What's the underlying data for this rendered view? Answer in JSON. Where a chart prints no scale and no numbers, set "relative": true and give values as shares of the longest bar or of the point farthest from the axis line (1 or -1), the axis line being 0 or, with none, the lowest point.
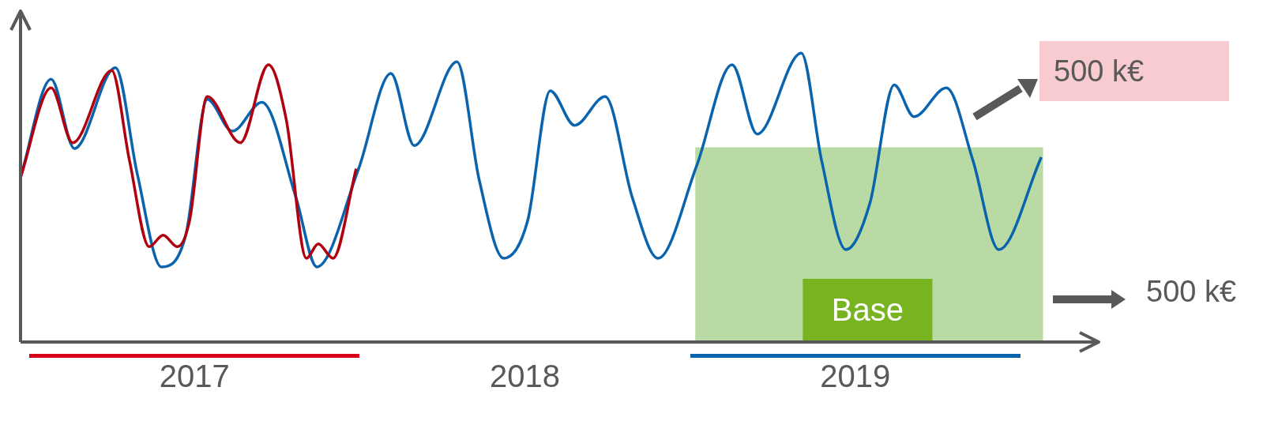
{
  "chart_data": {
    "type": "line",
    "relative": true,
    "tick_labels": "x",
    "xlim": [
      2017,
      2020.1
    ],
    "xticks": [
      {
        "value": 2017.5,
        "label": "2017"
      },
      {
        "value": 2018.45,
        "label": "2018"
      },
      {
        "value": 2019.4,
        "label": "2019"
      }
    ],
    "series": [
      {
        "color": "#b00010",
        "x": [
          2017,
          2017.088,
          2017.15,
          2017.262,
          2017.313,
          2017.37,
          2017.41,
          2017.451,
          2017.486,
          2017.537,
          2017.632,
          2017.713,
          2017.764,
          2017.822,
          2017.856,
          2017.898,
          2017.965
        ],
        "values": [
          0.57,
          0.88,
          0.69,
          0.94,
          0.63,
          0.33,
          0.37,
          0.33,
          0.42,
          0.85,
          0.69,
          0.96,
          0.77,
          0.29,
          0.34,
          0.29,
          0.6
        ]
      },
      {
        "color": "#0a64ad",
        "x": [
          2017,
          2017.088,
          2017.155,
          2017.273,
          2017.336,
          2017.405,
          2017.475,
          2017.537,
          2017.609,
          2017.694,
          2017.792,
          2017.852,
          2017.972,
          2018.065,
          2018.132,
          2018.255,
          2018.319,
          2018.389,
          2018.458,
          2018.523,
          2018.593,
          2018.681,
          2018.759,
          2018.833,
          2018.944,
          2019.046,
          2019.118,
          2019.245,
          2019.303,
          2019.373,
          2019.442,
          2019.512,
          2019.569,
          2019.662,
          2019.738,
          2019.813,
          2019.935
        ],
        "values": [
          0.57,
          0.91,
          0.67,
          0.95,
          0.58,
          0.26,
          0.37,
          0.84,
          0.73,
          0.83,
          0.5,
          0.26,
          0.6,
          0.93,
          0.68,
          0.97,
          0.56,
          0.29,
          0.42,
          0.87,
          0.75,
          0.85,
          0.5,
          0.29,
          0.61,
          0.96,
          0.72,
          1.0,
          0.63,
          0.32,
          0.48,
          0.89,
          0.78,
          0.88,
          0.63,
          0.32,
          0.64
        ]
      }
    ],
    "bands": [
      {
        "axis": "x",
        "from": 2018.94,
        "to": 2019.94,
        "label": "Base",
        "color": "#a9d18e"
      }
    ],
    "annotations": [
      "500 k€",
      "500 k€"
    ]
  }
}
